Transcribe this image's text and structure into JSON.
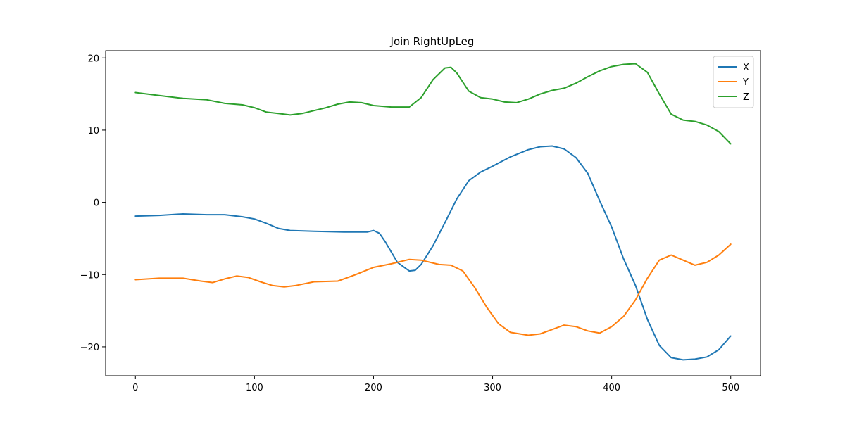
{
  "chart_data": {
    "type": "line",
    "title": "Join RightUpLeg",
    "xlabel": "",
    "ylabel": "",
    "xlim": [
      -25,
      525
    ],
    "ylim": [
      -24,
      21
    ],
    "xticks": [
      0,
      100,
      200,
      300,
      400,
      500
    ],
    "yticks": [
      -20,
      -10,
      0,
      10,
      20
    ],
    "grid": false,
    "legend_position": "top-right",
    "series": [
      {
        "name": "X",
        "color": "#1f77b4",
        "x": [
          0,
          20,
          40,
          60,
          75,
          90,
          100,
          110,
          120,
          130,
          150,
          175,
          195,
          200,
          205,
          210,
          220,
          230,
          235,
          240,
          250,
          260,
          270,
          280,
          290,
          300,
          315,
          330,
          340,
          350,
          360,
          370,
          380,
          390,
          400,
          410,
          420,
          430,
          440,
          450,
          460,
          470,
          480,
          490,
          500
        ],
        "y": [
          -1.9,
          -1.8,
          -1.6,
          -1.7,
          -1.7,
          -2.0,
          -2.3,
          -2.9,
          -3.6,
          -3.9,
          -4.0,
          -4.1,
          -4.1,
          -3.9,
          -4.3,
          -5.5,
          -8.3,
          -9.5,
          -9.4,
          -8.6,
          -6.0,
          -2.8,
          0.5,
          3.0,
          4.2,
          5.0,
          6.3,
          7.3,
          7.7,
          7.8,
          7.4,
          6.2,
          4.0,
          0.2,
          -3.4,
          -7.8,
          -11.5,
          -16.2,
          -19.8,
          -21.5,
          -21.8,
          -21.7,
          -21.4,
          -20.4,
          -18.5
        ]
      },
      {
        "name": "Y",
        "color": "#ff7f0e",
        "x": [
          0,
          20,
          40,
          55,
          65,
          75,
          85,
          95,
          105,
          115,
          125,
          135,
          150,
          170,
          185,
          200,
          215,
          230,
          240,
          255,
          265,
          275,
          285,
          295,
          305,
          315,
          330,
          340,
          350,
          360,
          370,
          380,
          390,
          400,
          410,
          420,
          430,
          440,
          450,
          460,
          470,
          480,
          490,
          500
        ],
        "y": [
          -10.7,
          -10.5,
          -10.5,
          -10.9,
          -11.1,
          -10.6,
          -10.2,
          -10.4,
          -11.0,
          -11.5,
          -11.7,
          -11.5,
          -11.0,
          -10.9,
          -10.0,
          -9.0,
          -8.5,
          -7.9,
          -8.0,
          -8.6,
          -8.7,
          -9.5,
          -11.8,
          -14.5,
          -16.8,
          -18.0,
          -18.4,
          -18.2,
          -17.6,
          -17.0,
          -17.2,
          -17.8,
          -18.1,
          -17.2,
          -15.8,
          -13.5,
          -10.5,
          -8.0,
          -7.3,
          -8.0,
          -8.7,
          -8.3,
          -7.3,
          -5.8
        ]
      },
      {
        "name": "Z",
        "color": "#2ca02c",
        "x": [
          0,
          20,
          40,
          60,
          75,
          90,
          100,
          110,
          120,
          130,
          140,
          150,
          160,
          170,
          180,
          190,
          200,
          215,
          230,
          240,
          250,
          260,
          265,
          270,
          280,
          290,
          300,
          310,
          320,
          330,
          340,
          350,
          360,
          370,
          380,
          390,
          400,
          410,
          420,
          430,
          440,
          450,
          460,
          470,
          480,
          490,
          500
        ],
        "y": [
          15.2,
          14.8,
          14.4,
          14.2,
          13.7,
          13.5,
          13.1,
          12.5,
          12.3,
          12.1,
          12.3,
          12.7,
          13.1,
          13.6,
          13.9,
          13.8,
          13.4,
          13.2,
          13.2,
          14.5,
          17.0,
          18.6,
          18.7,
          17.9,
          15.4,
          14.5,
          14.3,
          13.9,
          13.8,
          14.3,
          15.0,
          15.5,
          15.8,
          16.5,
          17.4,
          18.2,
          18.8,
          19.1,
          19.2,
          18.0,
          15.0,
          12.2,
          11.4,
          11.2,
          10.7,
          9.8,
          8.1
        ]
      }
    ]
  }
}
